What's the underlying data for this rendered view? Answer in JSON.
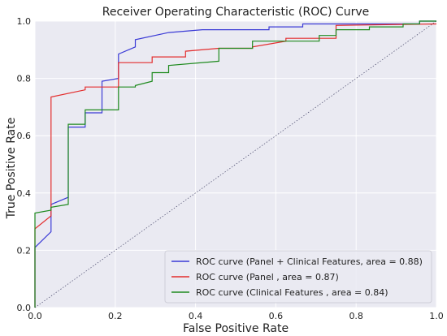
{
  "chart_data": {
    "type": "line",
    "title": "Receiver Operating Characteristic (ROC) Curve",
    "xlabel": "False Positive Rate",
    "ylabel": "True Positive Rate",
    "xlim": [
      0.0,
      1.0
    ],
    "ylim": [
      0.0,
      1.0
    ],
    "xticks": [
      "0.0",
      "0.2",
      "0.4",
      "0.6",
      "0.8",
      "1.0"
    ],
    "yticks": [
      "0.0",
      "0.2",
      "0.4",
      "0.6",
      "0.8",
      "1.0"
    ],
    "grid": true,
    "legend_position": "bottom-right",
    "reference_line": {
      "x": [
        0,
        1
      ],
      "y": [
        0,
        1
      ],
      "style": "dotted",
      "color": "#5a5a7a"
    },
    "series": [
      {
        "name": "ROC curve (Panel + Clinical Features, area = 0.88)",
        "color": "#3b3bd6",
        "x": [
          0,
          0,
          0.04,
          0.04,
          0.083,
          0.083,
          0.125,
          0.125,
          0.167,
          0.167,
          0.208,
          0.208,
          0.25,
          0.25,
          0.333,
          0.333,
          0.417,
          0.417,
          0.583,
          0.583,
          0.667,
          0.667,
          0.958,
          0.958,
          1.0
        ],
        "y": [
          0,
          0.21,
          0.265,
          0.36,
          0.385,
          0.63,
          0.63,
          0.68,
          0.68,
          0.79,
          0.8,
          0.885,
          0.91,
          0.935,
          0.96,
          0.96,
          0.97,
          0.97,
          0.97,
          0.98,
          0.98,
          0.99,
          0.99,
          1.0,
          1.0
        ]
      },
      {
        "name": "ROC curve (Panel , area = 0.87)",
        "color": "#e32c2c",
        "x": [
          0,
          0,
          0.04,
          0.04,
          0.125,
          0.125,
          0.208,
          0.208,
          0.292,
          0.292,
          0.375,
          0.375,
          0.458,
          0.458,
          0.542,
          0.542,
          0.625,
          0.625,
          0.75,
          0.75,
          1.0
        ],
        "y": [
          0,
          0.275,
          0.32,
          0.735,
          0.76,
          0.77,
          0.77,
          0.855,
          0.855,
          0.875,
          0.875,
          0.895,
          0.905,
          0.905,
          0.905,
          0.91,
          0.93,
          0.94,
          0.94,
          0.985,
          0.99
        ]
      },
      {
        "name": "ROC curve (Clinical Features , area = 0.84)",
        "color": "#1e8a1e",
        "x": [
          0,
          0,
          0.04,
          0.04,
          0.083,
          0.083,
          0.125,
          0.125,
          0.208,
          0.208,
          0.25,
          0.25,
          0.292,
          0.292,
          0.333,
          0.333,
          0.458,
          0.458,
          0.542,
          0.542,
          0.708,
          0.708,
          0.75,
          0.75,
          0.833,
          0.833,
          0.917,
          0.917,
          0.958,
          0.958,
          1.0
        ],
        "y": [
          0,
          0.33,
          0.34,
          0.35,
          0.36,
          0.64,
          0.64,
          0.69,
          0.69,
          0.77,
          0.77,
          0.775,
          0.79,
          0.82,
          0.82,
          0.845,
          0.86,
          0.905,
          0.905,
          0.93,
          0.93,
          0.95,
          0.95,
          0.97,
          0.97,
          0.98,
          0.98,
          0.99,
          0.99,
          1.0,
          1.0
        ]
      }
    ]
  }
}
